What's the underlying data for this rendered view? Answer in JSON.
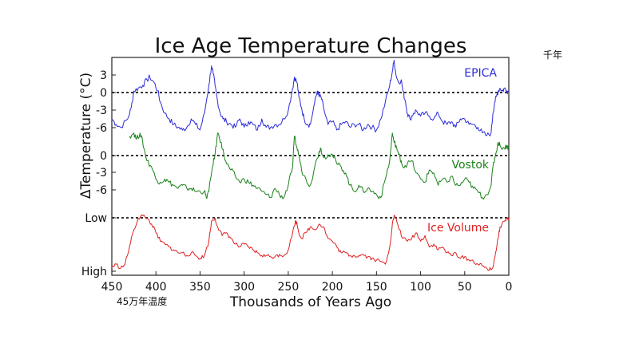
{
  "chart_data": {
    "type": "line",
    "title": "Ice Age Temperature Changes",
    "xlabel": "Thousands of Years Ago",
    "ylabel": "ΔTemperature (°C)",
    "xlim": [
      450,
      0
    ],
    "x_ticks": [
      "450",
      "400",
      "350",
      "300",
      "250",
      "200",
      "150",
      "100",
      "50",
      "0"
    ],
    "grid": false,
    "legend": "inline labels at right",
    "series": [
      {
        "name": "EPICA",
        "color": "#2b2bd9",
        "y_ticks": [
          "3",
          "0",
          "-3",
          "-6"
        ],
        "ylim": [
          -9,
          6
        ],
        "reference_line": 0,
        "x": [
          450,
          445,
          440,
          432,
          428,
          425,
          420,
          415,
          410,
          407,
          402,
          398,
          395,
          390,
          385,
          380,
          375,
          370,
          365,
          360,
          355,
          350,
          345,
          340,
          337,
          335,
          333,
          330,
          327,
          324,
          320,
          315,
          310,
          305,
          300,
          295,
          290,
          285,
          280,
          275,
          270,
          265,
          260,
          255,
          250,
          245,
          243,
          240,
          238,
          235,
          232,
          228,
          225,
          220,
          217,
          215,
          213,
          210,
          205,
          200,
          195,
          190,
          185,
          180,
          175,
          170,
          165,
          160,
          155,
          150,
          145,
          140,
          135,
          132,
          130,
          128,
          125,
          122,
          120,
          117,
          115,
          112,
          108,
          105,
          100,
          95,
          90,
          85,
          80,
          75,
          70,
          65,
          60,
          55,
          50,
          45,
          40,
          35,
          30,
          25,
          20,
          18,
          16,
          14,
          12,
          10,
          7,
          5,
          2,
          0
        ],
        "y": [
          -5,
          -6,
          -6.5,
          -5,
          -3,
          0,
          0.5,
          1,
          2,
          2.5,
          1.5,
          0,
          -2,
          -4,
          -5,
          -6,
          -6.5,
          -7,
          -6.5,
          -5,
          -6,
          -7,
          -4,
          1,
          4.5,
          3,
          1,
          -2,
          -4,
          -5,
          -5.5,
          -6,
          -6.5,
          -5,
          -6.5,
          -5.5,
          -6,
          -7,
          -5,
          -6.5,
          -6.5,
          -6,
          -6,
          -5,
          -3.5,
          0.5,
          2.5,
          1.5,
          -1,
          -3,
          -5,
          -6,
          -6,
          -2,
          0,
          -1,
          -1,
          -3,
          -6,
          -5.5,
          -7,
          -6,
          -5.5,
          -6.5,
          -6,
          -6,
          -7,
          -6,
          -6.5,
          -7,
          -5,
          -2,
          1,
          3.5,
          5.5,
          3,
          1.5,
          2,
          0,
          -2,
          -4,
          -5,
          -4,
          -3.5,
          -4.5,
          -4,
          -4.5,
          -5,
          -4,
          -5.5,
          -6,
          -5.5,
          -6.5,
          -5,
          -5,
          -6,
          -6,
          -6.5,
          -7.5,
          -8,
          -7.5,
          -4,
          -2,
          -1,
          0,
          0.5,
          0,
          0.5,
          0,
          0
        ]
      },
      {
        "name": "Vostok",
        "color": "#1a801a",
        "y_ticks": [
          "0",
          "-3",
          "-6"
        ],
        "ylim": [
          -10,
          3
        ],
        "reference_line": 0,
        "x": [
          430,
          425,
          422,
          418,
          415,
          412,
          410,
          405,
          400,
          395,
          390,
          385,
          380,
          375,
          370,
          365,
          360,
          355,
          350,
          345,
          343,
          340,
          336,
          333,
          330,
          326,
          323,
          320,
          315,
          310,
          305,
          300,
          295,
          290,
          285,
          280,
          275,
          270,
          265,
          260,
          255,
          250,
          245,
          243,
          240,
          238,
          235,
          230,
          225,
          220,
          215,
          213,
          210,
          205,
          200,
          195,
          190,
          185,
          180,
          175,
          170,
          165,
          160,
          155,
          150,
          145,
          140,
          135,
          132,
          130,
          128,
          125,
          122,
          120,
          115,
          110,
          105,
          100,
          95,
          90,
          85,
          80,
          75,
          70,
          65,
          60,
          55,
          50,
          45,
          40,
          35,
          30,
          25,
          20,
          18,
          15,
          12,
          10,
          5,
          2,
          0
        ],
        "y": [
          2,
          2.5,
          1.5,
          2.5,
          1,
          -1,
          -2,
          -3,
          -5,
          -5.5,
          -5,
          -5.5,
          -6,
          -6.5,
          -6,
          -6.5,
          -6.5,
          -7,
          -7,
          -7,
          -8,
          -7,
          -3,
          -1,
          2.5,
          1,
          -1,
          -2.5,
          -3.5,
          -4.5,
          -5.5,
          -5,
          -5.5,
          -6,
          -6.5,
          -7,
          -7.5,
          -8,
          -6.5,
          -7.5,
          -8,
          -6,
          -3,
          2,
          0,
          -1,
          -3.5,
          -5,
          -6,
          -3,
          -0.5,
          0,
          -1.5,
          -1,
          -1,
          -2.5,
          -3,
          -4,
          -6,
          -7,
          -6,
          -7,
          -6.5,
          -7,
          -7.5,
          -8,
          -5,
          -2,
          2.5,
          1,
          0.5,
          -1,
          -2,
          -3,
          -2.5,
          -2,
          -4,
          -5,
          -5.5,
          -3.5,
          -4,
          -6,
          -5,
          -5.5,
          -4.5,
          -6,
          -6,
          -5,
          -5.5,
          -6.5,
          -7,
          -8,
          -7.5,
          -6,
          -3,
          -1,
          1,
          0.5,
          0,
          0.5,
          0
        ]
      },
      {
        "name": "Ice Volume",
        "color": "#e02020",
        "y_ticks": [
          "Low",
          "High"
        ],
        "ylim": [
          "High",
          "Low"
        ],
        "reference_line": "Low",
        "x": [
          450,
          445,
          440,
          435,
          430,
          425,
          420,
          415,
          410,
          405,
          400,
          395,
          390,
          385,
          380,
          375,
          370,
          365,
          360,
          355,
          350,
          345,
          340,
          337,
          333,
          330,
          325,
          320,
          315,
          310,
          305,
          300,
          295,
          290,
          285,
          280,
          275,
          270,
          265,
          260,
          255,
          250,
          245,
          242,
          240,
          238,
          235,
          230,
          225,
          220,
          215,
          210,
          205,
          200,
          195,
          190,
          185,
          180,
          175,
          170,
          165,
          160,
          155,
          150,
          145,
          140,
          135,
          132,
          130,
          127,
          124,
          120,
          115,
          110,
          105,
          100,
          95,
          90,
          85,
          80,
          75,
          70,
          65,
          60,
          55,
          50,
          45,
          40,
          35,
          30,
          25,
          20,
          18,
          15,
          12,
          10,
          5,
          2,
          0
        ],
        "y": [
          0.1,
          0.15,
          0.08,
          0.15,
          0.45,
          0.75,
          0.95,
          1.0,
          0.95,
          0.85,
          0.7,
          0.55,
          0.5,
          0.45,
          0.4,
          0.35,
          0.35,
          0.3,
          0.35,
          0.3,
          0.25,
          0.3,
          0.55,
          0.9,
          0.95,
          0.8,
          0.65,
          0.7,
          0.6,
          0.5,
          0.45,
          0.5,
          0.45,
          0.4,
          0.35,
          0.3,
          0.3,
          0.28,
          0.28,
          0.32,
          0.3,
          0.4,
          0.7,
          0.9,
          0.85,
          0.7,
          0.6,
          0.7,
          0.8,
          0.75,
          0.85,
          0.8,
          0.6,
          0.55,
          0.45,
          0.35,
          0.35,
          0.3,
          0.3,
          0.3,
          0.32,
          0.28,
          0.25,
          0.22,
          0.2,
          0.15,
          0.45,
          0.85,
          1.0,
          0.9,
          0.75,
          0.6,
          0.55,
          0.6,
          0.7,
          0.55,
          0.65,
          0.45,
          0.5,
          0.4,
          0.45,
          0.35,
          0.3,
          0.35,
          0.25,
          0.28,
          0.22,
          0.2,
          0.15,
          0.12,
          0.08,
          0.05,
          0.1,
          0.35,
          0.6,
          0.8,
          0.9,
          0.95,
          0.95
        ]
      }
    ]
  },
  "annotations": {
    "top_right_cjk": "千年",
    "bottom_left_cjk": "45万年温度"
  }
}
